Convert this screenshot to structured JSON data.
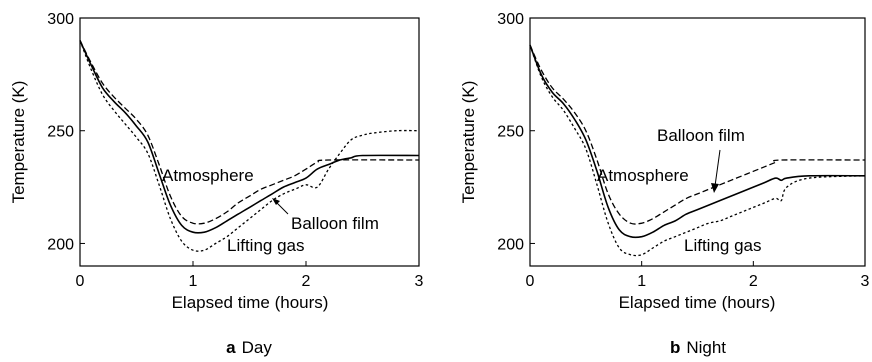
{
  "chart_data": [
    {
      "panel": "a",
      "caption_letter": "a",
      "caption_text": "Day",
      "type": "line",
      "xlabel": "Elapsed time (hours)",
      "ylabel": "Temperature (K)",
      "xlim": [
        0,
        3
      ],
      "ylim": [
        190,
        300
      ],
      "xticks": [
        "0",
        "1",
        "2",
        "3"
      ],
      "yticks": [
        "200",
        "250",
        "300"
      ],
      "grid": false,
      "legend": "none",
      "series": [
        {
          "name": "Atmosphere",
          "style": "dashed",
          "x": [
            0,
            0.1,
            0.2,
            0.3,
            0.4,
            0.5,
            0.6,
            0.7,
            0.8,
            0.9,
            1.0,
            1.1,
            1.2,
            1.3,
            1.4,
            1.5,
            1.6,
            1.7,
            1.8,
            1.9,
            2.0,
            2.1,
            2.2,
            3.0
          ],
          "y": [
            290,
            280,
            271,
            265,
            260,
            255,
            248,
            235,
            221,
            212,
            209,
            209,
            211,
            214,
            218,
            221,
            224,
            226,
            228,
            230,
            233,
            236,
            237,
            237
          ]
        },
        {
          "name": "Balloon film",
          "style": "solid",
          "x": [
            0,
            0.1,
            0.2,
            0.3,
            0.4,
            0.5,
            0.6,
            0.7,
            0.8,
            0.9,
            1.0,
            1.1,
            1.2,
            1.3,
            1.4,
            1.5,
            1.6,
            1.7,
            1.8,
            1.9,
            2.0,
            2.1,
            2.2,
            2.3,
            2.4,
            2.5,
            3.0
          ],
          "y": [
            290,
            279,
            269,
            263,
            258,
            252,
            245,
            231,
            217,
            208,
            205,
            205,
            207,
            210,
            213,
            216,
            219,
            222,
            225,
            227,
            229,
            233,
            235,
            237,
            238,
            239,
            239
          ]
        },
        {
          "name": "Lifting gas",
          "style": "dotted",
          "x": [
            0,
            0.1,
            0.2,
            0.3,
            0.4,
            0.5,
            0.6,
            0.7,
            0.8,
            0.9,
            1.0,
            1.1,
            1.2,
            1.3,
            1.4,
            1.5,
            1.6,
            1.7,
            1.8,
            1.9,
            2.0,
            2.1,
            2.2,
            2.3,
            2.4,
            2.5,
            2.6,
            2.8,
            3.0
          ],
          "y": [
            290,
            277,
            266,
            259,
            253,
            247,
            240,
            226,
            211,
            201,
            197,
            197,
            200,
            203,
            207,
            211,
            215,
            219,
            222,
            224,
            226,
            225,
            233,
            240,
            246,
            248,
            249,
            250,
            250
          ]
        }
      ],
      "annotations": [
        {
          "text": "Atmosphere"
        },
        {
          "text": "Balloon film"
        },
        {
          "text": "Lifting gas"
        }
      ]
    },
    {
      "panel": "b",
      "caption_letter": "b",
      "caption_text": "Night",
      "type": "line",
      "xlabel": "Elapsed time (hours)",
      "ylabel": "Temperature (K)",
      "xlim": [
        0,
        3
      ],
      "ylim": [
        190,
        300
      ],
      "xticks": [
        "0",
        "1",
        "2",
        "3"
      ],
      "yticks": [
        "200",
        "250",
        "300"
      ],
      "grid": false,
      "legend": "none",
      "series": [
        {
          "name": "Atmosphere",
          "style": "dashed",
          "x": [
            0,
            0.1,
            0.2,
            0.3,
            0.4,
            0.5,
            0.6,
            0.7,
            0.8,
            0.9,
            1.0,
            1.1,
            1.2,
            1.3,
            1.4,
            1.5,
            1.6,
            1.7,
            1.8,
            1.9,
            2.0,
            2.1,
            2.2,
            2.25,
            3.0
          ],
          "y": [
            288,
            277,
            269,
            264,
            258,
            250,
            237,
            222,
            213,
            209,
            209,
            211,
            214,
            217,
            220,
            222,
            224,
            226,
            228,
            230,
            232,
            234,
            236,
            237,
            237
          ]
        },
        {
          "name": "Balloon film",
          "style": "solid",
          "x": [
            0,
            0.1,
            0.2,
            0.3,
            0.4,
            0.5,
            0.6,
            0.7,
            0.8,
            0.9,
            1.0,
            1.1,
            1.2,
            1.3,
            1.4,
            1.5,
            1.6,
            1.7,
            1.8,
            1.9,
            2.0,
            2.1,
            2.2,
            2.25,
            2.3,
            2.5,
            3.0
          ],
          "y": [
            288,
            275,
            267,
            262,
            255,
            246,
            232,
            216,
            206,
            203,
            203,
            205,
            208,
            210,
            213,
            215,
            217,
            219,
            221,
            223,
            225,
            227,
            229,
            228,
            229,
            230,
            230
          ]
        },
        {
          "name": "Lifting gas",
          "style": "dotted",
          "x": [
            0,
            0.1,
            0.2,
            0.3,
            0.4,
            0.5,
            0.6,
            0.7,
            0.8,
            0.9,
            1.0,
            1.1,
            1.2,
            1.3,
            1.4,
            1.5,
            1.6,
            1.7,
            1.8,
            1.9,
            2.0,
            2.1,
            2.2,
            2.25,
            2.3,
            2.5,
            3.0
          ],
          "y": [
            288,
            274,
            265,
            259,
            251,
            242,
            226,
            209,
            198,
            195,
            195,
            198,
            201,
            203,
            205,
            207,
            209,
            210,
            212,
            214,
            216,
            218,
            220,
            219,
            225,
            229,
            230
          ]
        }
      ],
      "annotations": [
        {
          "text": "Atmosphere"
        },
        {
          "text": "Balloon film"
        },
        {
          "text": "Lifting gas"
        }
      ]
    }
  ]
}
